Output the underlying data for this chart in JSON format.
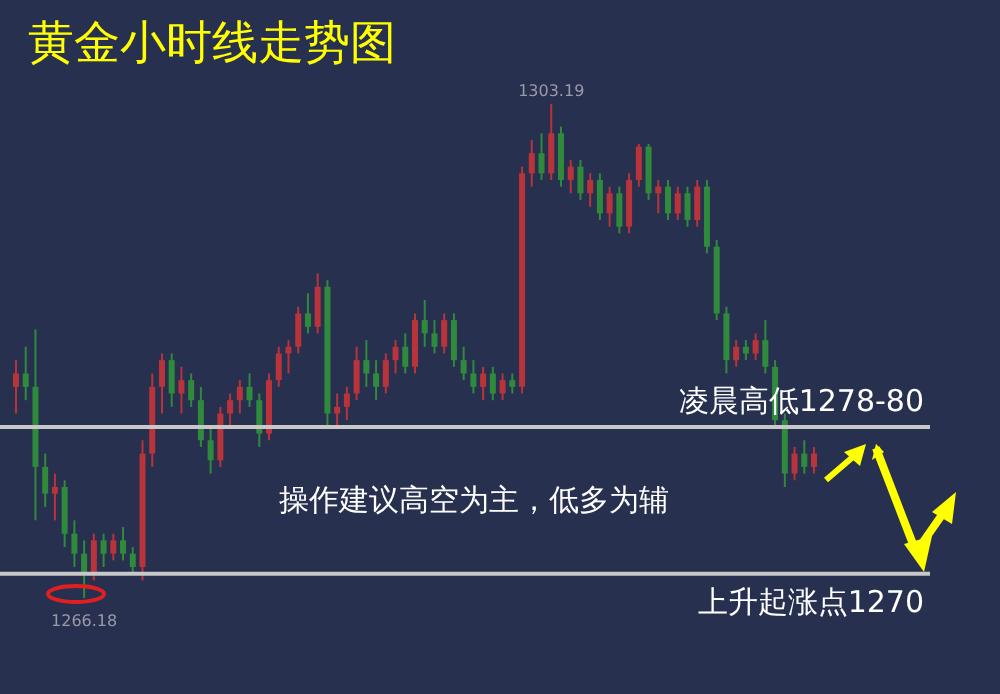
{
  "chart_data": {
    "type": "candlestick",
    "title": "黄金小时线走势图",
    "categories": [
      null,
      null,
      null,
      null,
      null,
      null,
      null,
      null,
      null,
      null,
      null,
      null,
      null,
      null,
      null,
      null,
      null,
      null,
      null,
      null,
      null,
      null,
      null,
      null,
      null,
      null,
      null,
      null,
      null,
      null,
      null,
      null,
      null,
      null,
      null,
      null,
      null,
      null,
      null,
      null,
      null,
      null,
      null,
      null,
      null,
      null,
      null,
      null,
      null,
      null,
      null,
      null,
      null,
      null,
      null,
      null,
      null,
      null,
      null,
      null,
      null,
      null,
      null,
      null,
      null,
      null,
      null,
      null,
      null,
      null,
      null,
      null,
      null,
      null,
      null,
      null,
      null,
      null,
      null,
      null,
      null,
      null,
      null
    ],
    "ohlc": [
      [
        1282,
        1284,
        1280,
        1283
      ],
      [
        1283,
        1285,
        1281,
        1282
      ],
      [
        1282,
        1286.3,
        1272,
        1276
      ],
      [
        1276,
        1277,
        1273,
        1274
      ],
      [
        1274,
        1275.5,
        1272,
        1274.5
      ],
      [
        1274.5,
        1275,
        1270,
        1271
      ],
      [
        1271,
        1272,
        1268.5,
        1269.5
      ],
      [
        1269.5,
        1270.5,
        1266.18,
        1268
      ],
      [
        1268,
        1271,
        1267.5,
        1270.5
      ],
      [
        1270.5,
        1271,
        1268.5,
        1269.5
      ],
      [
        1269.5,
        1271,
        1269,
        1270.5
      ],
      [
        1270.5,
        1271.5,
        1269,
        1269.5
      ],
      [
        1269.5,
        1270,
        1268,
        1268.5
      ],
      [
        1268.5,
        1278,
        1267.5,
        1277
      ],
      [
        1277,
        1283,
        1276,
        1282
      ],
      [
        1282,
        1284.5,
        1280,
        1284
      ],
      [
        1284,
        1284.5,
        1280.5,
        1281.5
      ],
      [
        1281.5,
        1283.5,
        1280,
        1282.5
      ],
      [
        1282.5,
        1283,
        1280.5,
        1281
      ],
      [
        1281,
        1282,
        1277.5,
        1278
      ],
      [
        1278,
        1279,
        1275.5,
        1276.5
      ],
      [
        1276.5,
        1280.5,
        1276,
        1280
      ],
      [
        1280,
        1281.5,
        1279,
        1281
      ],
      [
        1281,
        1282.5,
        1280,
        1282
      ],
      [
        1282,
        1283,
        1280.5,
        1281
      ],
      [
        1281,
        1281.5,
        1277.5,
        1278.5
      ],
      [
        1278.5,
        1283,
        1278,
        1282.5
      ],
      [
        1282.5,
        1285,
        1282,
        1284.5
      ],
      [
        1284.5,
        1285.5,
        1283,
        1285
      ],
      [
        1285,
        1288,
        1284.5,
        1287.5
      ],
      [
        1287.5,
        1289,
        1286,
        1286.5
      ],
      [
        1286.5,
        1290.5,
        1286,
        1289.5
      ],
      [
        1289.5,
        1290,
        1279,
        1280
      ],
      [
        1280,
        1281.5,
        1279,
        1280.5
      ],
      [
        1280.5,
        1282,
        1279.5,
        1281.5
      ],
      [
        1281.5,
        1285,
        1281,
        1284
      ],
      [
        1284,
        1285.5,
        1282,
        1283
      ],
      [
        1283,
        1284,
        1281,
        1282
      ],
      [
        1282,
        1284.5,
        1281.5,
        1284
      ],
      [
        1284,
        1285.5,
        1283,
        1285
      ],
      [
        1285,
        1286,
        1283,
        1283.5
      ],
      [
        1283.5,
        1287.5,
        1283,
        1287
      ],
      [
        1287,
        1288.5,
        1285,
        1286
      ],
      [
        1286,
        1287,
        1284.5,
        1285
      ],
      [
        1285,
        1287.5,
        1284.5,
        1287
      ],
      [
        1287,
        1287.5,
        1283.5,
        1284
      ],
      [
        1284,
        1285,
        1282.5,
        1283
      ],
      [
        1283,
        1284,
        1281.5,
        1282
      ],
      [
        1282,
        1283.5,
        1281,
        1283
      ],
      [
        1283,
        1283.5,
        1281,
        1281.5
      ],
      [
        1281.5,
        1283,
        1281,
        1282.5
      ],
      [
        1282.5,
        1283,
        1281.5,
        1282
      ],
      [
        1282,
        1298.5,
        1281.5,
        1298
      ],
      [
        1298,
        1300.5,
        1297,
        1299.5
      ],
      [
        1299.5,
        1301,
        1297.5,
        1298
      ],
      [
        1298,
        1303.19,
        1297.5,
        1301
      ],
      [
        1301,
        1301.5,
        1297,
        1297.5
      ],
      [
        1297.5,
        1299,
        1296.5,
        1298.5
      ],
      [
        1298.5,
        1299,
        1296,
        1296.5
      ],
      [
        1296.5,
        1298,
        1295.5,
        1297.5
      ],
      [
        1297.5,
        1298,
        1294.5,
        1295
      ],
      [
        1295,
        1297,
        1294,
        1296.5
      ],
      [
        1296.5,
        1297,
        1293.5,
        1294
      ],
      [
        1294,
        1298,
        1293.5,
        1297.5
      ],
      [
        1297.5,
        1300.2,
        1297,
        1300
      ],
      [
        1300,
        1300.2,
        1296,
        1296.5
      ],
      [
        1296.5,
        1297.5,
        1295,
        1297
      ],
      [
        1297,
        1297.5,
        1294.5,
        1295
      ],
      [
        1295,
        1297,
        1294.5,
        1296.5
      ],
      [
        1296.5,
        1297,
        1294,
        1294.5
      ],
      [
        1294.5,
        1297.5,
        1294,
        1297
      ],
      [
        1297,
        1297.5,
        1292,
        1292.5
      ],
      [
        1292.5,
        1293,
        1287,
        1287.5
      ],
      [
        1287.5,
        1288,
        1283,
        1284
      ],
      [
        1284,
        1285.5,
        1283.5,
        1285
      ],
      [
        1285,
        1285.5,
        1284,
        1284.5
      ],
      [
        1284.5,
        1286,
        1284,
        1285.5
      ],
      [
        1285.5,
        1287,
        1283,
        1283.5
      ],
      [
        1283.5,
        1284,
        1279,
        1279.5
      ],
      [
        1279.5,
        1280,
        1274.5,
        1275.5
      ],
      [
        1275.5,
        1277.5,
        1275,
        1277
      ],
      [
        1277,
        1278,
        1275.5,
        1276
      ],
      [
        1276,
        1277.5,
        1275.5,
        1277
      ]
    ],
    "colors": [
      "#b8333a",
      "#2f8a3c",
      "#2f8a3c",
      "#2f8a3c",
      "#b8333a",
      "#2f8a3c",
      "#2f8a3c",
      "#2f8a3c",
      "#b8333a",
      "#2f8a3c",
      "#b8333a",
      "#2f8a3c",
      "#2f8a3c",
      "#b8333a",
      "#b8333a",
      "#b8333a",
      "#2f8a3c",
      "#b8333a",
      "#2f8a3c",
      "#2f8a3c",
      "#2f8a3c",
      "#b8333a",
      "#b8333a",
      "#b8333a",
      "#2f8a3c",
      "#2f8a3c",
      "#b8333a",
      "#b8333a",
      "#b8333a",
      "#b8333a",
      "#2f8a3c",
      "#b8333a",
      "#2f8a3c",
      "#b8333a",
      "#b8333a",
      "#b8333a",
      "#2f8a3c",
      "#2f8a3c",
      "#b8333a",
      "#b8333a",
      "#2f8a3c",
      "#b8333a",
      "#2f8a3c",
      "#2f8a3c",
      "#b8333a",
      "#2f8a3c",
      "#2f8a3c",
      "#2f8a3c",
      "#b8333a",
      "#2f8a3c",
      "#b8333a",
      "#2f8a3c",
      "#b8333a",
      "#b8333a",
      "#2f8a3c",
      "#b8333a",
      "#2f8a3c",
      "#b8333a",
      "#2f8a3c",
      "#b8333a",
      "#2f8a3c",
      "#b8333a",
      "#2f8a3c",
      "#b8333a",
      "#b8333a",
      "#2f8a3c",
      "#b8333a",
      "#2f8a3c",
      "#b8333a",
      "#2f8a3c",
      "#b8333a",
      "#2f8a3c",
      "#2f8a3c",
      "#2f8a3c",
      "#b8333a",
      "#2f8a3c",
      "#b8333a",
      "#2f8a3c",
      "#2f8a3c",
      "#2f8a3c",
      "#b8333a",
      "#2f8a3c",
      "#b8333a"
    ],
    "ref_lines": [
      {
        "axis": "y",
        "value": 1279,
        "label": "凌晨高低1278-80",
        "color": "#c8c8c8"
      },
      {
        "axis": "y",
        "value": 1268,
        "label": "上升起涨点1270",
        "color": "#c8c8c8"
      }
    ],
    "annotations": [
      {
        "text": "1303.19",
        "y": 1303.19
      },
      {
        "text": "1266.18",
        "y": 1266.18
      },
      "操作建议高空为主，低多为辅"
    ]
  }
}
